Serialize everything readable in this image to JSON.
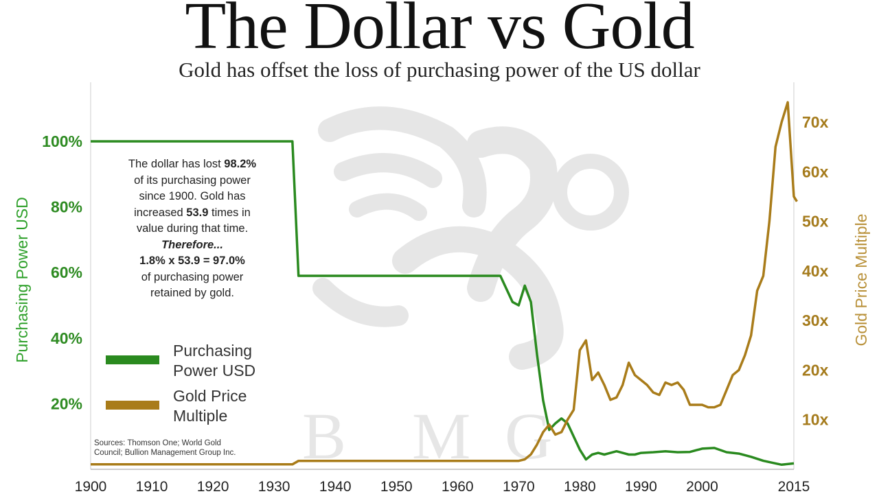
{
  "title": "The Dollar vs Gold",
  "subtitle": "Gold has offset the loss of purchasing power of the US dollar",
  "colors": {
    "purchasing_power": "#2a8a1f",
    "gold": "#a97c1a",
    "background": "#ffffff"
  },
  "watermark": {
    "letters": [
      "B",
      "M",
      "G"
    ],
    "icon": "griffin-logo-icon"
  },
  "annotation": {
    "line1_pre": "The dollar has lost ",
    "line1_bold": "98.2%",
    "line2": "of its purchasing power",
    "line3": "since 1900.  Gold has",
    "line4_pre": "increased ",
    "line4_bold": "53.9",
    "line4_post": " times in",
    "line5": "value during that time.",
    "line6": "Therefore...",
    "line7": "1.8% x 53.9 = 97.0%",
    "line8": "of purchasing power",
    "line9": "retained by gold."
  },
  "legend": {
    "items": [
      {
        "line1": "Purchasing",
        "line2": "Power USD",
        "color": "#2a8a1f"
      },
      {
        "line1": "Gold Price",
        "line2": "Multiple",
        "color": "#a97c1a"
      }
    ]
  },
  "sources": {
    "line1": "Sources: Thomson One; World Gold",
    "line2": "Council; Bullion Management Group Inc."
  },
  "chart_data": {
    "type": "line",
    "title": "The Dollar vs Gold",
    "subtitle": "Gold has offset the loss of purchasing power of the US dollar",
    "xlabel": "",
    "ylabel_left": "Purchasing Power USD",
    "ylabel_right": "Gold Price Multiple",
    "xlim": [
      1900,
      2015
    ],
    "ylim_left": [
      0,
      100
    ],
    "ylim_right": [
      0,
      75
    ],
    "x_ticks": [
      "1900",
      "1910",
      "1920",
      "1930",
      "1940",
      "1950",
      "1960",
      "1970",
      "1980",
      "1990",
      "2000",
      "2015"
    ],
    "y_left_ticks": [
      "20%",
      "40%",
      "60%",
      "80%",
      "100%"
    ],
    "y_right_ticks": [
      "10x",
      "20x",
      "30x",
      "40x",
      "50x",
      "60x",
      "70x"
    ],
    "grid": false,
    "legend_position": "bottom-left",
    "series": [
      {
        "name": "Purchasing Power USD",
        "axis": "left",
        "color": "#2a8a1f",
        "points": [
          [
            1900,
            100
          ],
          [
            1933,
            100
          ],
          [
            1934,
            59
          ],
          [
            1967,
            59
          ],
          [
            1968,
            55
          ],
          [
            1969,
            51
          ],
          [
            1970,
            50
          ],
          [
            1971,
            56
          ],
          [
            1972,
            51
          ],
          [
            1973,
            35
          ],
          [
            1974,
            21
          ],
          [
            1975,
            12
          ],
          [
            1976,
            14
          ],
          [
            1977,
            15.5
          ],
          [
            1978,
            14
          ],
          [
            1979,
            10
          ],
          [
            1980,
            6
          ],
          [
            1981,
            3
          ],
          [
            1982,
            4.5
          ],
          [
            1983,
            5
          ],
          [
            1984,
            4.5
          ],
          [
            1985,
            5
          ],
          [
            1986,
            5.5
          ],
          [
            1987,
            5
          ],
          [
            1988,
            4.5
          ],
          [
            1989,
            4.5
          ],
          [
            1990,
            5
          ],
          [
            1992,
            5.2
          ],
          [
            1994,
            5.5
          ],
          [
            1996,
            5.2
          ],
          [
            1998,
            5.3
          ],
          [
            2000,
            6.3
          ],
          [
            2002,
            6.5
          ],
          [
            2004,
            5.2
          ],
          [
            2006,
            4.8
          ],
          [
            2008,
            3.8
          ],
          [
            2010,
            2.6
          ],
          [
            2012,
            1.8
          ],
          [
            2013,
            1.4
          ],
          [
            2015,
            1.8
          ]
        ]
      },
      {
        "name": "Gold Price Multiple",
        "axis": "right",
        "color": "#a97c1a",
        "points": [
          [
            1900,
            1
          ],
          [
            1933,
            1
          ],
          [
            1934,
            1.7
          ],
          [
            1970,
            1.7
          ],
          [
            1971,
            2
          ],
          [
            1972,
            3
          ],
          [
            1973,
            5
          ],
          [
            1974,
            7.5
          ],
          [
            1975,
            9
          ],
          [
            1976,
            7
          ],
          [
            1977,
            7.5
          ],
          [
            1978,
            10
          ],
          [
            1979,
            12
          ],
          [
            1980,
            24
          ],
          [
            1981,
            26
          ],
          [
            1982,
            18
          ],
          [
            1983,
            19.5
          ],
          [
            1984,
            17
          ],
          [
            1985,
            14
          ],
          [
            1986,
            14.5
          ],
          [
            1987,
            17
          ],
          [
            1988,
            21.5
          ],
          [
            1989,
            19
          ],
          [
            1990,
            18
          ],
          [
            1991,
            17
          ],
          [
            1992,
            15.5
          ],
          [
            1993,
            15
          ],
          [
            1994,
            17.5
          ],
          [
            1995,
            17
          ],
          [
            1996,
            17.5
          ],
          [
            1997,
            16
          ],
          [
            1998,
            13
          ],
          [
            1999,
            13
          ],
          [
            2000,
            13
          ],
          [
            2001,
            12.5
          ],
          [
            2002,
            12.5
          ],
          [
            2003,
            13
          ],
          [
            2004,
            16
          ],
          [
            2005,
            19
          ],
          [
            2006,
            20
          ],
          [
            2007,
            23
          ],
          [
            2008,
            27
          ],
          [
            2009,
            36
          ],
          [
            2010,
            39
          ],
          [
            2011,
            50
          ],
          [
            2012,
            65
          ],
          [
            2013,
            70
          ],
          [
            2014,
            74
          ],
          [
            2015,
            55
          ],
          [
            2015.5,
            54
          ]
        ]
      }
    ]
  }
}
